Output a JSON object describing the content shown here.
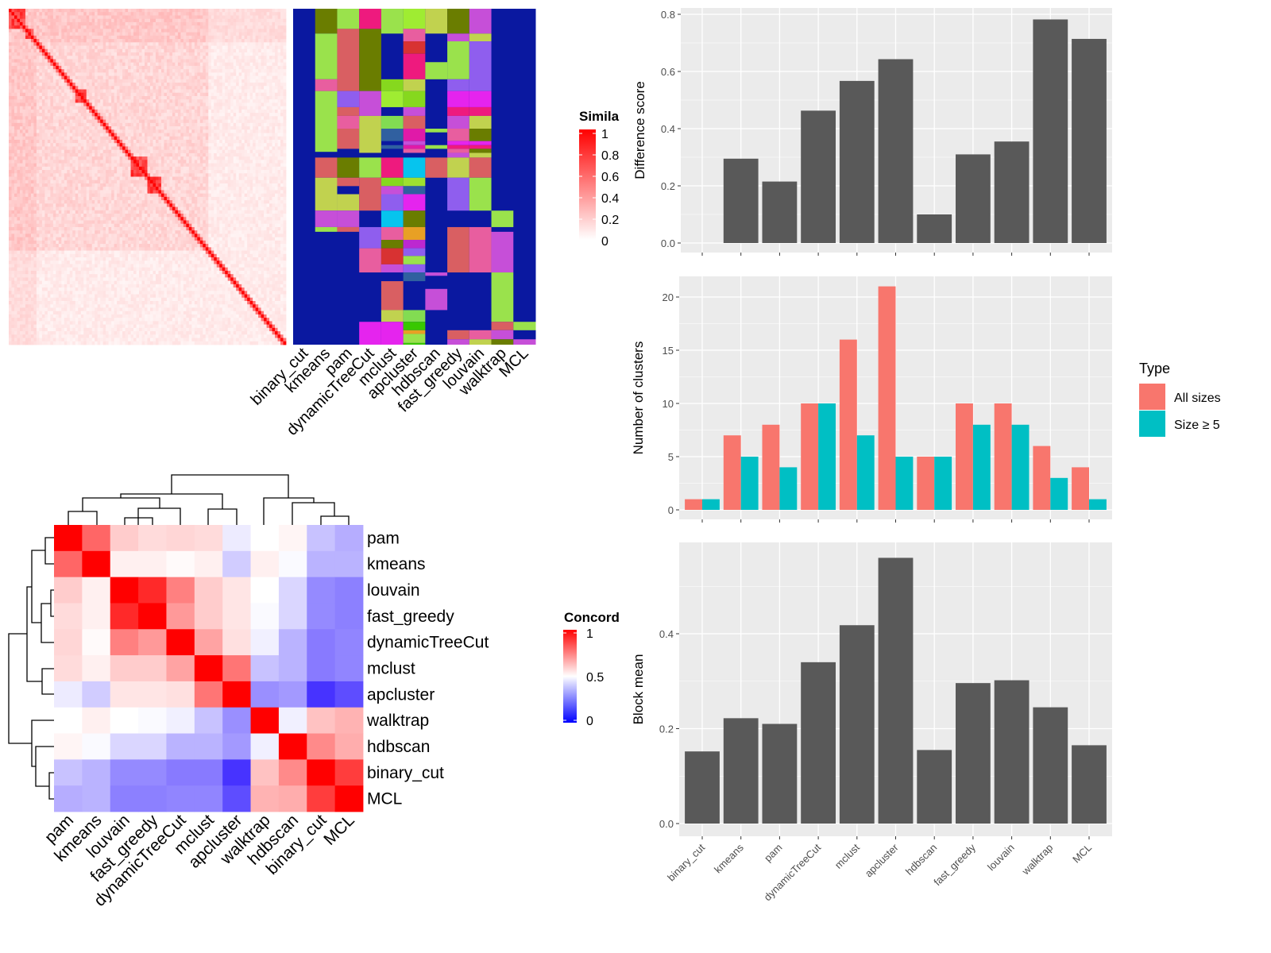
{
  "chart_data": [
    {
      "type": "heatmap",
      "panel": "similarity",
      "legend_title": "Simila",
      "legend_ticks": [
        "1",
        "0.8",
        "0.6",
        "0.4",
        "0.2",
        "0"
      ],
      "colorscale": [
        "#FFFFFF",
        "#FF0000"
      ],
      "label_columns": [
        {
          "name": "binary_cut",
          "segments": []
        },
        {
          "name": "kmeans",
          "segments": [
            [
              0,
              7.4,
              "#6A7D00"
            ],
            [
              7.4,
              21,
              "#9AE24C"
            ],
            [
              21,
              24.5,
              "#E85E9F"
            ],
            [
              24.5,
              42.6,
              "#9AE24C"
            ],
            [
              44.3,
              50.3,
              "#D95F62"
            ],
            [
              50.3,
              60.1,
              "#C1D24F"
            ],
            [
              60.1,
              65,
              "#C64FD8"
            ],
            [
              65,
              66.4,
              "#9AE24C"
            ]
          ]
        },
        {
          "name": "pam",
          "segments": [
            [
              0,
              6,
              "#9AE24C"
            ],
            [
              6,
              24.5,
              "#D95F62"
            ],
            [
              24.5,
              29.3,
              "#8F5EEE"
            ],
            [
              29.3,
              31.9,
              "#D95F62"
            ],
            [
              31.9,
              35.7,
              "#E85E9F"
            ],
            [
              35.7,
              41.7,
              "#D95F62"
            ],
            [
              44.3,
              50.3,
              "#6A7D00"
            ],
            [
              50.3,
              52.8,
              "#D95F62"
            ],
            [
              55.2,
              60.1,
              "#C1D24F"
            ],
            [
              60.1,
              65,
              "#C64FD8"
            ],
            [
              65,
              66.4,
              "#D95F62"
            ]
          ]
        },
        {
          "name": "dynamicTreeCut",
          "segments": [
            [
              0,
              6,
              "#EE1A7E"
            ],
            [
              6,
              24.5,
              "#6A7D00"
            ],
            [
              24.5,
              31.9,
              "#C64FD8"
            ],
            [
              31.9,
              42.9,
              "#C1D24F"
            ],
            [
              44.3,
              50.3,
              "#9AE24C"
            ],
            [
              50.3,
              60.1,
              "#D95F62"
            ],
            [
              65,
              71.3,
              "#8F5EEE"
            ],
            [
              71.3,
              78.5,
              "#E85E9F"
            ],
            [
              93.2,
              100,
              "#E524EE"
            ]
          ]
        },
        {
          "name": "mclust",
          "segments": [
            [
              0,
              7.4,
              "#9AE24C"
            ],
            [
              21,
              24.5,
              "#86D81E"
            ],
            [
              24.5,
              29.3,
              "#9FEC32"
            ],
            [
              31.9,
              35.7,
              "#82DC52"
            ],
            [
              35.7,
              39.4,
              "#3060A0"
            ],
            [
              40.6,
              41.7,
              "#3060A0"
            ],
            [
              44.3,
              50.3,
              "#EE1A7E"
            ],
            [
              50.3,
              52.8,
              "#86D81E"
            ],
            [
              52.8,
              55.2,
              "#C64FD8"
            ],
            [
              55.2,
              60.1,
              "#8F5EEE"
            ],
            [
              60.1,
              65,
              "#06C4EE"
            ],
            [
              65,
              68.8,
              "#E85E9F"
            ],
            [
              68.8,
              71.3,
              "#6A7D00"
            ],
            [
              71.3,
              76.1,
              "#D83232"
            ],
            [
              76.1,
              78.5,
              "#C64FD8"
            ],
            [
              81.1,
              89.7,
              "#D95F62"
            ],
            [
              89.7,
              93.2,
              "#C1D24F"
            ],
            [
              93.2,
              100,
              "#E524EE"
            ]
          ]
        },
        {
          "name": "apcluster",
          "segments": [
            [
              0,
              6,
              "#9FEC32"
            ],
            [
              6,
              9.7,
              "#E85E9F"
            ],
            [
              9.7,
              13.4,
              "#D83232"
            ],
            [
              13.4,
              21,
              "#EE1A7E"
            ],
            [
              21,
              24.5,
              "#C1D24F"
            ],
            [
              24.5,
              29.3,
              "#86D81E"
            ],
            [
              29.3,
              31.9,
              "#C64FD8"
            ],
            [
              31.9,
              35.7,
              "#D95F62"
            ],
            [
              35.7,
              39.4,
              "#E01AA8"
            ],
            [
              39.4,
              40.6,
              "#C64FD8"
            ],
            [
              40.6,
              41.7,
              "#E01AA8"
            ],
            [
              41.7,
              42.9,
              "#E85E9F"
            ],
            [
              44.3,
              50.3,
              "#06C4EE"
            ],
            [
              50.3,
              52.8,
              "#9FE030"
            ],
            [
              52.8,
              55.2,
              "#3060A0"
            ],
            [
              55.2,
              60.1,
              "#E524EE"
            ],
            [
              60.1,
              65,
              "#6A7D00"
            ],
            [
              65,
              68.8,
              "#E8A024"
            ],
            [
              68.8,
              71.3,
              "#BC28D0"
            ],
            [
              71.3,
              73.6,
              "#8F5EEE"
            ],
            [
              73.6,
              76.1,
              "#9AE24C"
            ],
            [
              76.1,
              78.5,
              "#8F5EEE"
            ],
            [
              78.5,
              81.1,
              "#3060A0"
            ],
            [
              89.7,
              93.2,
              "#82DC52"
            ],
            [
              93.2,
              95.7,
              "#38C800"
            ],
            [
              95.7,
              96.8,
              "#E8A024"
            ],
            [
              96.8,
              99.5,
              "#9AE24C"
            ],
            [
              99.5,
              100,
              "#38C800"
            ]
          ]
        },
        {
          "name": "hdbscan",
          "segments": [
            [
              0,
              7.4,
              "#C1D24F"
            ],
            [
              15.9,
              21,
              "#9AE24C"
            ],
            [
              35.7,
              36.8,
              "#9AE24C"
            ],
            [
              40.6,
              41.7,
              "#9AE24C"
            ],
            [
              44.3,
              50.3,
              "#D95F62"
            ],
            [
              78.5,
              79.5,
              "#C64FD8"
            ],
            [
              83.4,
              89.7,
              "#C64FD8"
            ]
          ]
        },
        {
          "name": "fast_greedy",
          "segments": [
            [
              0,
              7.4,
              "#6A7D00"
            ],
            [
              7.4,
              9.7,
              "#C64FD8"
            ],
            [
              9.7,
              21,
              "#9AE24C"
            ],
            [
              21,
              24.5,
              "#8F5EEE"
            ],
            [
              24.5,
              29.3,
              "#E524EE"
            ],
            [
              29.3,
              31.9,
              "#EE1A7E"
            ],
            [
              31.9,
              35.7,
              "#C64FD8"
            ],
            [
              35.7,
              39.4,
              "#E85E9F"
            ],
            [
              39.4,
              40.6,
              "#E524EE"
            ],
            [
              40.6,
              41.7,
              "#EE1A7E"
            ],
            [
              41.7,
              42.9,
              "#E85E9F"
            ],
            [
              42.9,
              44.3,
              "#C64FD8"
            ],
            [
              44.3,
              50.3,
              "#C1D24F"
            ],
            [
              50.3,
              60.1,
              "#8F5EEE"
            ],
            [
              65,
              78.5,
              "#D95F62"
            ],
            [
              95.7,
              98.4,
              "#D95F62"
            ],
            [
              98.4,
              100,
              "#C64FD8"
            ]
          ]
        },
        {
          "name": "louvain",
          "segments": [
            [
              0,
              7.4,
              "#C64FD8"
            ],
            [
              7.4,
              9.7,
              "#C1D24F"
            ],
            [
              9.7,
              24.5,
              "#8F5EEE"
            ],
            [
              24.5,
              29.3,
              "#E524EE"
            ],
            [
              29.3,
              31.9,
              "#EE1A7E"
            ],
            [
              31.9,
              35.7,
              "#C1D24F"
            ],
            [
              35.7,
              39.4,
              "#6A7D00"
            ],
            [
              39.4,
              40.6,
              "#E524EE"
            ],
            [
              40.6,
              41.7,
              "#EE1A7E"
            ],
            [
              41.7,
              42.9,
              "#6A7D00"
            ],
            [
              42.9,
              44.3,
              "#C1D24F"
            ],
            [
              44.3,
              50.3,
              "#D95F62"
            ],
            [
              50.3,
              60.1,
              "#9AE24C"
            ],
            [
              65,
              78.5,
              "#E85E9F"
            ],
            [
              95.7,
              98.4,
              "#E85E9F"
            ],
            [
              98.4,
              100,
              "#C1D24F"
            ]
          ]
        },
        {
          "name": "walktrap",
          "segments": [
            [
              60.1,
              65,
              "#9AE24C"
            ],
            [
              66.4,
              78.5,
              "#C64FD8"
            ],
            [
              78.5,
              93.2,
              "#9AE24C"
            ],
            [
              93.2,
              95.7,
              "#D95F62"
            ],
            [
              95.7,
              98.4,
              "#C64FD8"
            ],
            [
              98.4,
              100,
              "#6A7D00"
            ]
          ]
        },
        {
          "name": "MCL",
          "segments": [
            [
              93.2,
              95.7,
              "#9AE24C"
            ],
            [
              98.4,
              100,
              "#C64FD8"
            ]
          ]
        }
      ],
      "label_background": "#0A18A0"
    },
    {
      "type": "heatmap",
      "panel": "concordance",
      "legend_title": "Concord",
      "legend_ticks": [
        "1",
        "0.5",
        "0"
      ],
      "colorscale": [
        "#0000FF",
        "#FFFFFF",
        "#FF0000"
      ],
      "labels": [
        "pam",
        "kmeans",
        "louvain",
        "fast_greedy",
        "dynamicTreeCut",
        "mclust",
        "apcluster",
        "walktrap",
        "hdbscan",
        "binary_cut",
        "MCL"
      ],
      "matrix": [
        [
          1,
          0.8,
          0.6,
          0.57,
          0.58,
          0.57,
          0.46,
          0.5,
          0.52,
          0.38,
          0.34
        ],
        [
          0.8,
          1,
          0.53,
          0.53,
          0.51,
          0.53,
          0.4,
          0.53,
          0.49,
          0.35,
          0.35
        ],
        [
          0.6,
          0.53,
          1,
          0.92,
          0.75,
          0.6,
          0.55,
          0.5,
          0.42,
          0.27,
          0.25
        ],
        [
          0.57,
          0.53,
          0.92,
          1,
          0.7,
          0.6,
          0.55,
          0.49,
          0.42,
          0.27,
          0.25
        ],
        [
          0.58,
          0.51,
          0.75,
          0.7,
          1,
          0.68,
          0.56,
          0.47,
          0.35,
          0.24,
          0.26
        ],
        [
          0.57,
          0.53,
          0.6,
          0.6,
          0.68,
          1,
          0.77,
          0.38,
          0.35,
          0.24,
          0.26
        ],
        [
          0.46,
          0.4,
          0.55,
          0.55,
          0.56,
          0.77,
          1,
          0.28,
          0.3,
          0.1,
          0.15
        ],
        [
          0.5,
          0.53,
          0.5,
          0.49,
          0.47,
          0.38,
          0.28,
          1,
          0.47,
          0.62,
          0.65
        ],
        [
          0.52,
          0.49,
          0.42,
          0.42,
          0.35,
          0.35,
          0.3,
          0.47,
          1,
          0.73,
          0.66
        ],
        [
          0.38,
          0.35,
          0.27,
          0.27,
          0.24,
          0.24,
          0.1,
          0.62,
          0.73,
          1,
          0.88
        ],
        [
          0.34,
          0.35,
          0.25,
          0.25,
          0.26,
          0.26,
          0.15,
          0.65,
          0.66,
          0.88,
          1
        ]
      ]
    },
    {
      "type": "bar",
      "ylabel": "Difference score",
      "categories": [
        "binary_cut",
        "kmeans",
        "pam",
        "dynamicTreeCut",
        "mclust",
        "apcluster",
        "hdbscan",
        "fast_greedy",
        "louvain",
        "walktrap",
        "MCL"
      ],
      "values": [
        0,
        0.295,
        0.215,
        0.463,
        0.567,
        0.643,
        0.1,
        0.31,
        0.355,
        0.782,
        0.714
      ],
      "ylim": [
        0,
        0.8
      ],
      "yticks": [
        "0.0",
        "0.2",
        "0.4",
        "0.6",
        "0.8"
      ],
      "bar_color": "#595959",
      "grid": true
    },
    {
      "type": "bar",
      "ylabel": "Number of clusters",
      "categories": [
        "binary_cut",
        "kmeans",
        "pam",
        "dynamicTreeCut",
        "mclust",
        "apcluster",
        "hdbscan",
        "fast_greedy",
        "louvain",
        "walktrap",
        "MCL"
      ],
      "series": [
        {
          "name": "All sizes",
          "color": "#F8766D",
          "values": [
            1,
            7,
            8,
            10,
            16,
            21,
            5,
            10,
            10,
            6,
            4
          ]
        },
        {
          "name": "Size ≥ 5",
          "color": "#00BFC4",
          "values": [
            1,
            5,
            4,
            10,
            7,
            5,
            5,
            8,
            8,
            3,
            1
          ]
        }
      ],
      "legend_title": "Type",
      "legend_position": "right",
      "ylim": [
        0,
        21
      ],
      "yticks": [
        "0",
        "5",
        "10",
        "15",
        "20"
      ],
      "grid": true
    },
    {
      "type": "bar",
      "ylabel": "Block mean",
      "categories": [
        "binary_cut",
        "kmeans",
        "pam",
        "dynamicTreeCut",
        "mclust",
        "apcluster",
        "hdbscan",
        "fast_greedy",
        "louvain",
        "walktrap",
        "MCL"
      ],
      "values": [
        0.152,
        0.222,
        0.21,
        0.34,
        0.418,
        0.56,
        0.155,
        0.296,
        0.302,
        0.245,
        0.165
      ],
      "ylim": [
        0,
        0.56
      ],
      "yticks": [
        "0.0",
        "0.2",
        "0.4"
      ],
      "bar_color": "#595959",
      "grid": true
    }
  ]
}
